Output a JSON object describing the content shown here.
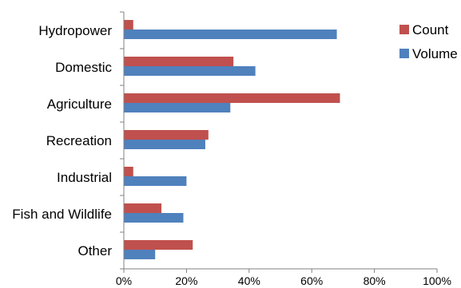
{
  "chart_data": {
    "type": "bar",
    "orientation": "horizontal",
    "categories": [
      "Hydropower",
      "Domestic",
      "Agriculture",
      "Recreation",
      "Industrial",
      "Fish and Wildlife",
      "Other"
    ],
    "series": [
      {
        "name": "Count",
        "color": "#c0504d",
        "values": [
          3,
          35,
          69,
          27,
          3,
          12,
          22
        ]
      },
      {
        "name": "Volume",
        "color": "#4f81bd",
        "values": [
          68,
          42,
          34,
          26,
          20,
          19,
          10
        ]
      }
    ],
    "x_ticks": [
      "0%",
      "20%",
      "40%",
      "60%",
      "80%",
      "100%"
    ],
    "xlim": [
      0,
      100
    ],
    "xlabel": "",
    "ylabel": "",
    "title": "",
    "grid": false,
    "legend_position": "top-right"
  }
}
